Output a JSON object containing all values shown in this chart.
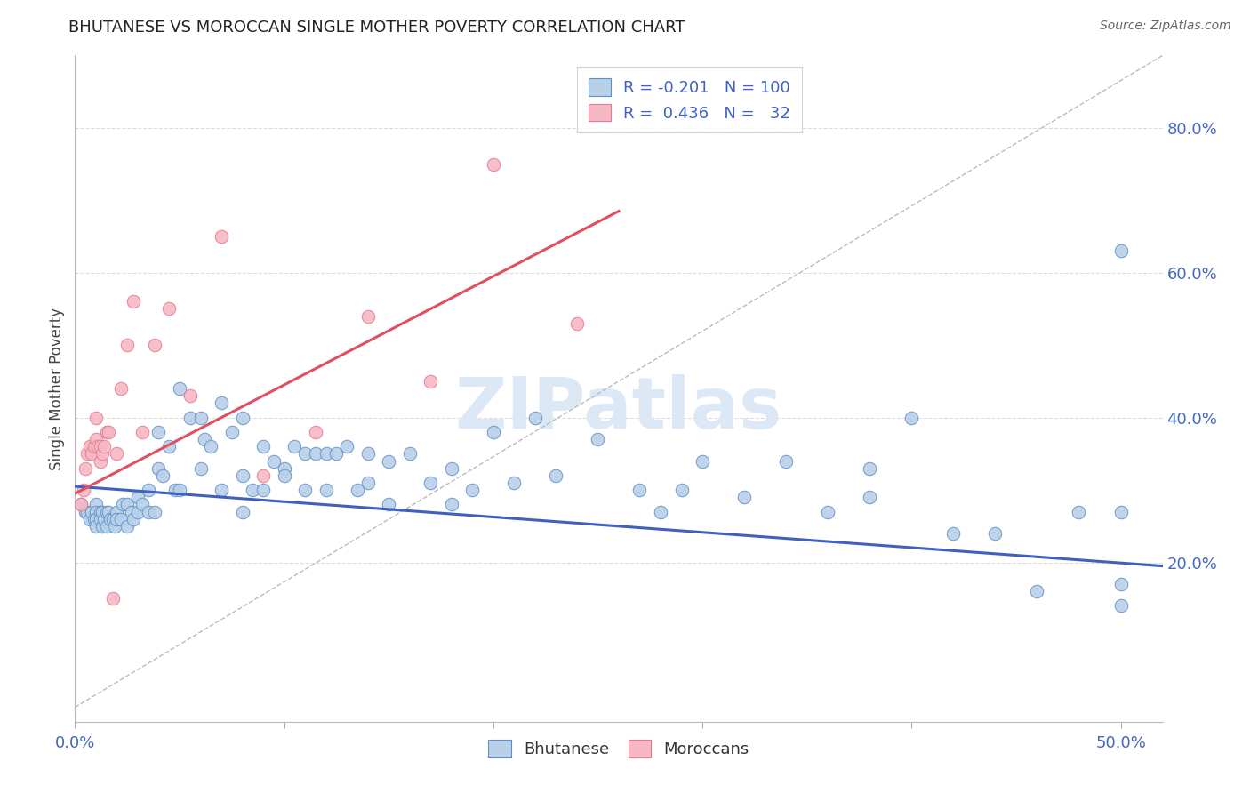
{
  "title": "BHUTANESE VS MOROCCAN SINGLE MOTHER POVERTY CORRELATION CHART",
  "source": "Source: ZipAtlas.com",
  "ylabel": "Single Mother Poverty",
  "right_yticks": [
    "20.0%",
    "40.0%",
    "60.0%",
    "80.0%"
  ],
  "right_ytick_vals": [
    0.2,
    0.4,
    0.6,
    0.8
  ],
  "xlim": [
    0.0,
    0.52
  ],
  "ylim": [
    -0.02,
    0.9
  ],
  "legend_blue_R": "-0.201",
  "legend_blue_N": "100",
  "legend_pink_R": "0.436",
  "legend_pink_N": "32",
  "blue_color": "#b8d0e8",
  "pink_color": "#f5b8c4",
  "blue_edge_color": "#6090c8",
  "pink_edge_color": "#e87890",
  "blue_line_color": "#4060c0",
  "pink_line_color": "#e05060",
  "dashed_line_color": "#bbbbbb",
  "grid_color": "#dddddd",
  "watermark_color": "#dce8f5",
  "blue_scatter_x": [
    0.003,
    0.005,
    0.006,
    0.007,
    0.008,
    0.009,
    0.01,
    0.01,
    0.01,
    0.01,
    0.012,
    0.012,
    0.013,
    0.013,
    0.014,
    0.015,
    0.015,
    0.016,
    0.017,
    0.018,
    0.019,
    0.02,
    0.02,
    0.022,
    0.023,
    0.025,
    0.025,
    0.027,
    0.028,
    0.03,
    0.03,
    0.032,
    0.035,
    0.035,
    0.038,
    0.04,
    0.04,
    0.042,
    0.045,
    0.048,
    0.05,
    0.05,
    0.055,
    0.06,
    0.06,
    0.062,
    0.065,
    0.07,
    0.07,
    0.075,
    0.08,
    0.08,
    0.085,
    0.09,
    0.09,
    0.095,
    0.1,
    0.1,
    0.105,
    0.11,
    0.11,
    0.115,
    0.12,
    0.12,
    0.125,
    0.13,
    0.135,
    0.14,
    0.14,
    0.15,
    0.15,
    0.16,
    0.17,
    0.18,
    0.19,
    0.2,
    0.21,
    0.22,
    0.23,
    0.25,
    0.27,
    0.29,
    0.3,
    0.32,
    0.34,
    0.36,
    0.38,
    0.4,
    0.42,
    0.44,
    0.46,
    0.48,
    0.5,
    0.5,
    0.5,
    0.5,
    0.38,
    0.28,
    0.18,
    0.08
  ],
  "blue_scatter_y": [
    0.28,
    0.27,
    0.27,
    0.26,
    0.27,
    0.26,
    0.28,
    0.27,
    0.26,
    0.25,
    0.27,
    0.26,
    0.27,
    0.25,
    0.26,
    0.27,
    0.25,
    0.27,
    0.26,
    0.26,
    0.25,
    0.27,
    0.26,
    0.26,
    0.28,
    0.28,
    0.25,
    0.27,
    0.26,
    0.29,
    0.27,
    0.28,
    0.3,
    0.27,
    0.27,
    0.33,
    0.38,
    0.32,
    0.36,
    0.3,
    0.44,
    0.3,
    0.4,
    0.4,
    0.33,
    0.37,
    0.36,
    0.42,
    0.3,
    0.38,
    0.4,
    0.32,
    0.3,
    0.36,
    0.3,
    0.34,
    0.33,
    0.32,
    0.36,
    0.35,
    0.3,
    0.35,
    0.35,
    0.3,
    0.35,
    0.36,
    0.3,
    0.35,
    0.31,
    0.34,
    0.28,
    0.35,
    0.31,
    0.33,
    0.3,
    0.38,
    0.31,
    0.4,
    0.32,
    0.37,
    0.3,
    0.3,
    0.34,
    0.29,
    0.34,
    0.27,
    0.29,
    0.4,
    0.24,
    0.24,
    0.16,
    0.27,
    0.63,
    0.17,
    0.14,
    0.27,
    0.33,
    0.27,
    0.28,
    0.27
  ],
  "pink_scatter_x": [
    0.003,
    0.004,
    0.005,
    0.006,
    0.007,
    0.008,
    0.009,
    0.01,
    0.01,
    0.011,
    0.012,
    0.012,
    0.013,
    0.014,
    0.015,
    0.016,
    0.018,
    0.02,
    0.022,
    0.025,
    0.028,
    0.032,
    0.038,
    0.045,
    0.055,
    0.07,
    0.09,
    0.115,
    0.14,
    0.17,
    0.2,
    0.24
  ],
  "pink_scatter_y": [
    0.28,
    0.3,
    0.33,
    0.35,
    0.36,
    0.35,
    0.36,
    0.37,
    0.4,
    0.36,
    0.36,
    0.34,
    0.35,
    0.36,
    0.38,
    0.38,
    0.15,
    0.35,
    0.44,
    0.5,
    0.56,
    0.38,
    0.5,
    0.55,
    0.43,
    0.65,
    0.32,
    0.38,
    0.54,
    0.45,
    0.75,
    0.53
  ],
  "blue_trend_x": [
    0.0,
    0.52
  ],
  "blue_trend_y": [
    0.305,
    0.195
  ],
  "pink_trend_x": [
    0.0,
    0.26
  ],
  "pink_trend_y": [
    0.295,
    0.685
  ],
  "dashed_trend_x": [
    0.0,
    0.52
  ],
  "dashed_trend_y": [
    0.0,
    0.9
  ]
}
